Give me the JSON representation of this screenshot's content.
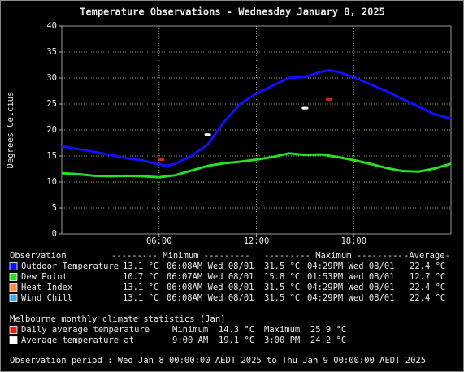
{
  "chart_data": {
    "type": "line",
    "title": "Temperature Observations - Wednesday January 8, 2025",
    "y_label": "Degrees Celcius",
    "xlim": [
      0,
      24
    ],
    "ylim": [
      0,
      40
    ],
    "xticks": [
      {
        "value": 6,
        "label": "06:00"
      },
      {
        "value": 12,
        "label": "12:00"
      },
      {
        "value": 18,
        "label": "18:00"
      }
    ],
    "yticks": [
      0,
      5,
      10,
      15,
      20,
      25,
      30,
      35,
      40
    ],
    "grid": true,
    "series": [
      {
        "name": "Outdoor Temperature",
        "color": "#1010ff",
        "x": [
          0,
          1,
          2,
          3,
          4,
          5,
          6,
          6.5,
          7,
          8,
          9,
          10,
          11,
          12,
          13,
          14,
          15,
          16,
          16.5,
          17,
          18,
          19,
          20,
          21,
          22,
          23,
          24
        ],
        "values": [
          16.9,
          16.3,
          15.8,
          15.2,
          14.6,
          14.1,
          13.4,
          13.1,
          13.5,
          15,
          17.2,
          21.5,
          25,
          27,
          28.5,
          30,
          30.2,
          31.2,
          31.5,
          31.2,
          30.2,
          28.8,
          27.5,
          26,
          24.5,
          23,
          22.2
        ]
      },
      {
        "name": "Dew Point",
        "color": "#22e022",
        "x": [
          0,
          1,
          2,
          3,
          4,
          5,
          6,
          7,
          8,
          9,
          10,
          11,
          12,
          13,
          14,
          15,
          16,
          17,
          18,
          19,
          20,
          21,
          22,
          23,
          24
        ],
        "values": [
          11.7,
          11.5,
          11.2,
          11.1,
          11.2,
          11.1,
          10.9,
          11.3,
          12.2,
          13.1,
          13.6,
          13.9,
          14.3,
          14.8,
          15.5,
          15.2,
          15.3,
          14.8,
          14.2,
          13.5,
          12.7,
          12.1,
          12.0,
          12.6,
          13.5
        ]
      }
    ],
    "markers": [
      {
        "color": "#e02020",
        "x": [
          6.13,
          16.48
        ],
        "values": [
          14.3,
          25.9
        ]
      },
      {
        "color": "#ffffff",
        "x": [
          9,
          15
        ],
        "values": [
          19.1,
          24.2
        ]
      }
    ]
  },
  "observations": {
    "header": [
      "Observation",
      "--------- Minimum ---------",
      "--------- Maximum ---------",
      "-Average-"
    ],
    "rows": [
      {
        "color": "#1010ff",
        "label": "Outdoor Temperature",
        "min": "13.1 °C",
        "min_time": "06:08AM Wed 08/01",
        "max": "31.5 °C",
        "max_time": "04:29PM Wed 08/01",
        "avg": "22.4 °C"
      },
      {
        "color": "#22e022",
        "label": "Dew Point",
        "min": "10.7 °C",
        "min_time": "06:07AM Wed 08/01",
        "max": "15.8 °C",
        "max_time": "01:53PM Wed 08/01",
        "avg": "12.7 °C"
      },
      {
        "color": "#ff8c3c",
        "label": "Heat Index",
        "min": "13.1 °C",
        "min_time": "06:08AM Wed 08/01",
        "max": "31.5 °C",
        "max_time": "04:29PM Wed 08/01",
        "avg": "22.4 °C"
      },
      {
        "color": "#4aa8e8",
        "label": "Wind Chill",
        "min": "13.1 °C",
        "min_time": "06:08AM Wed 08/01",
        "max": "31.5 °C",
        "max_time": "04:29PM Wed 08/01",
        "avg": "22.4 °C"
      }
    ]
  },
  "climate": {
    "title": "Melbourne monthly climate statistics (Jan)",
    "rows": [
      {
        "color": "#e02020",
        "label": "Daily average temperature",
        "cells": [
          "Minimum  14.3 °C",
          "Maximum  25.9 °C"
        ]
      },
      {
        "color": "#ffffff",
        "label": "Average temperature at",
        "cells": [
          "9:00 AM  19.1 °C",
          "3:00 PM  24.2 °C"
        ]
      }
    ]
  },
  "footer": "Observation period : Wed Jan 8 00:00:00 AEDT 2025 to Thu Jan 9 00:00:00 AEDT 2025"
}
